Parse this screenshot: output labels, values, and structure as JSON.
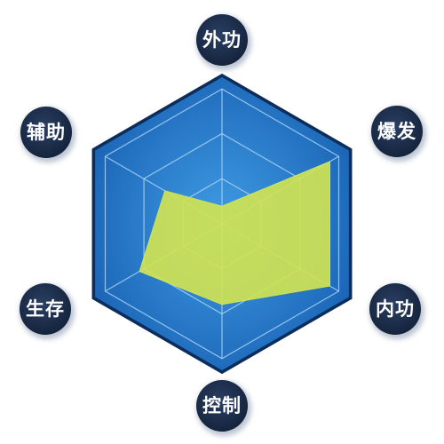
{
  "chart_data": {
    "type": "radar",
    "axes": [
      "外功",
      "爆发",
      "内功",
      "控制",
      "生存",
      "辅助"
    ],
    "values": [
      0.12,
      0.85,
      0.85,
      0.55,
      0.65,
      0.45
    ],
    "range": [
      0,
      1
    ],
    "rings": 3,
    "grid": true
  },
  "colors": {
    "hex_fill_outer": "#1c66b8",
    "hex_fill_inner": "#3f9ce3",
    "hex_border": "#0c2c5a",
    "grid_line": "#a9d2f3",
    "data_fill": "#cfe354",
    "badge_fill": "#15243d",
    "badge_text": "#ffffff"
  }
}
